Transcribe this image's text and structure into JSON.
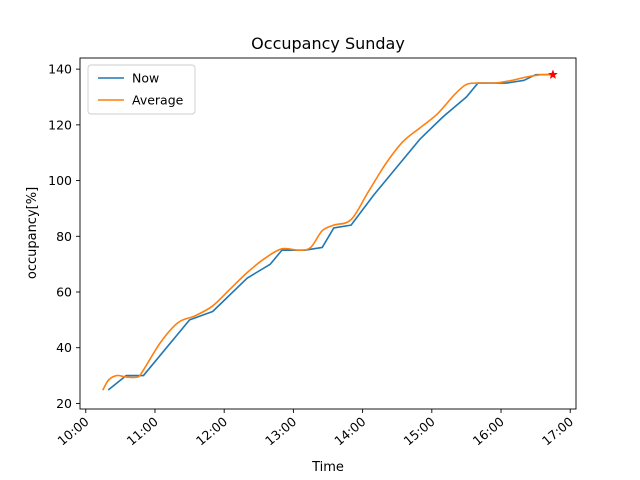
{
  "chart_data": {
    "type": "line",
    "title": "Occupancy Sunday",
    "xlabel": "Time",
    "ylabel": "occupancy[%]",
    "x_tick_labels": [
      "10:00",
      "11:00",
      "12:00",
      "13:00",
      "14:00",
      "15:00",
      "16:00",
      "17:00"
    ],
    "x_ticks": [
      "10:00",
      "11:00",
      "12:00",
      "13:00",
      "14:00",
      "15:00",
      "16:00",
      "17:00"
    ],
    "y_ticks": [
      20,
      40,
      60,
      80,
      100,
      120,
      140
    ],
    "xlim": [
      "10:00",
      "17:00"
    ],
    "ylim": [
      20,
      140
    ],
    "grid": false,
    "legend_position": "upper left",
    "series": [
      {
        "name": "Now",
        "color": "#1f77b4",
        "x": [
          "10:20",
          "10:35",
          "10:50",
          "11:30",
          "11:50",
          "12:20",
          "12:40",
          "12:50",
          "13:10",
          "13:25",
          "13:35",
          "13:50",
          "14:10",
          "14:30",
          "14:50",
          "15:10",
          "15:30",
          "15:40",
          "15:55",
          "16:05",
          "16:20",
          "16:30",
          "16:40",
          "16:45"
        ],
        "y": [
          25,
          30,
          30,
          50,
          53,
          65,
          70,
          75,
          75,
          76,
          83,
          84,
          95,
          105,
          115,
          123,
          130,
          135,
          135,
          135,
          136,
          138,
          138,
          138
        ]
      },
      {
        "name": "Average",
        "color": "#ff7f0e",
        "x": [
          "10:15",
          "10:20",
          "10:27",
          "10:35",
          "10:45",
          "10:50",
          "11:05",
          "11:20",
          "11:35",
          "11:50",
          "12:05",
          "12:20",
          "12:35",
          "12:50",
          "13:05",
          "13:15",
          "13:25",
          "13:35",
          "13:50",
          "14:05",
          "14:20",
          "14:35",
          "14:50",
          "15:05",
          "15:20",
          "15:30",
          "15:40",
          "15:55",
          "16:10",
          "16:20",
          "16:35",
          "16:45"
        ],
        "y": [
          25,
          28.5,
          30,
          29.5,
          29.5,
          32,
          42,
          49,
          51.5,
          55,
          61,
          67,
          72,
          75.5,
          75,
          76,
          82,
          84,
          86,
          96,
          106,
          114,
          119,
          124,
          131,
          134.5,
          135,
          135,
          136,
          137,
          138,
          138
        ]
      }
    ],
    "marker": {
      "x": "16:45",
      "y": 138,
      "shape": "star",
      "color": "#ff0000"
    },
    "colors": {
      "now": "#1f77b4",
      "average": "#ff7f0e",
      "marker": "#ff0000"
    }
  }
}
